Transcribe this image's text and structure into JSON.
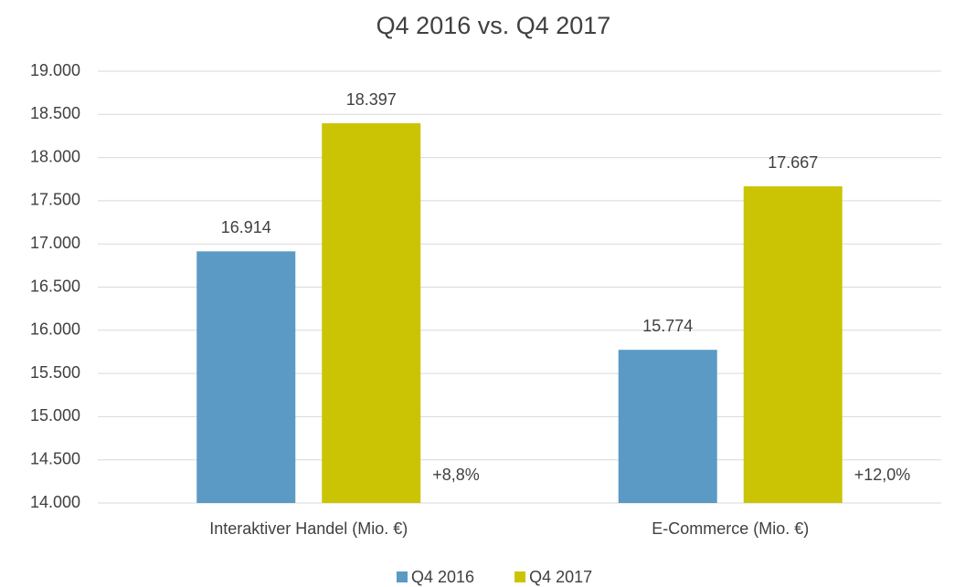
{
  "chart_data": {
    "type": "bar",
    "title": "Q4 2016 vs. Q4 2017",
    "categories": [
      "Interaktiver Handel (Mio. €)",
      "E-Commerce (Mio. €)"
    ],
    "series": [
      {
        "name": "Q4 2016",
        "color": "#5b9ac4",
        "values": [
          16914,
          15774
        ],
        "value_labels": [
          "16.914",
          "15.774"
        ]
      },
      {
        "name": "Q4 2017",
        "color": "#cbc405",
        "values": [
          18397,
          17667
        ],
        "value_labels": [
          "18.397",
          "17.667"
        ]
      }
    ],
    "annotations": [
      "+8,8%",
      "+12,0%"
    ],
    "ylim": [
      14000,
      19000
    ],
    "yticks": [
      {
        "value": 14000,
        "label": "14.000"
      },
      {
        "value": 14500,
        "label": "14.500"
      },
      {
        "value": 15000,
        "label": "15.000"
      },
      {
        "value": 15500,
        "label": "15.500"
      },
      {
        "value": 16000,
        "label": "16.000"
      },
      {
        "value": 16500,
        "label": "16.500"
      },
      {
        "value": 17000,
        "label": "17.000"
      },
      {
        "value": 17500,
        "label": "17.500"
      },
      {
        "value": 18000,
        "label": "18.000"
      },
      {
        "value": 18500,
        "label": "18.500"
      },
      {
        "value": 19000,
        "label": "19.000"
      }
    ],
    "grid": true,
    "legend": "bottom"
  }
}
